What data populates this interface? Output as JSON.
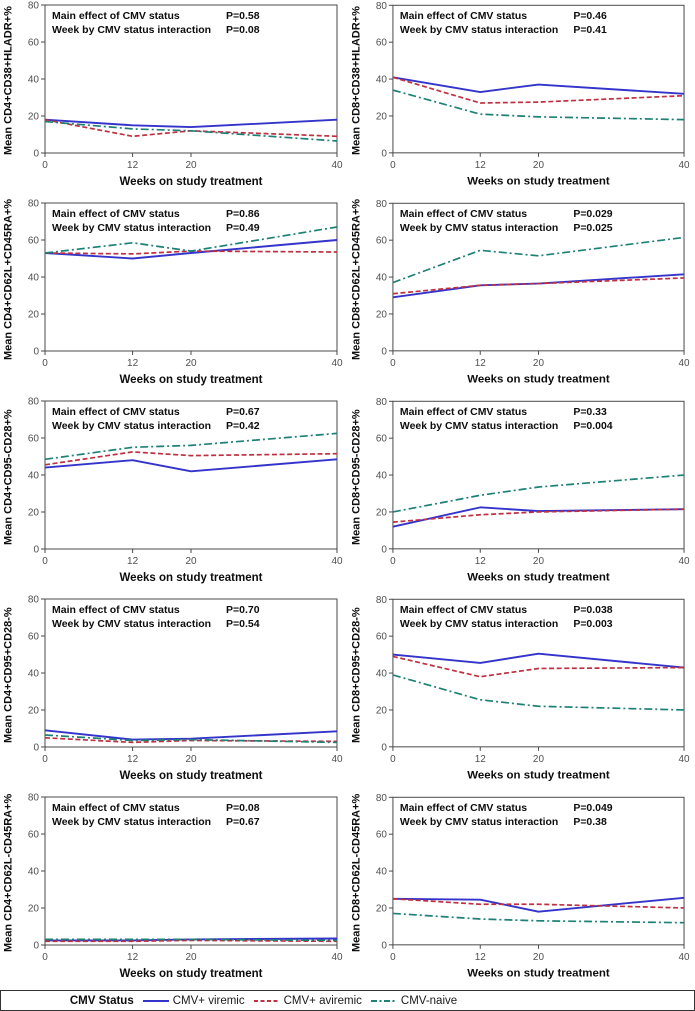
{
  "figure": {
    "xlabel": "Weeks on study treatment",
    "x_ticks": [
      0,
      12,
      20,
      40
    ],
    "y_ticks": [
      0,
      20,
      40,
      60,
      80
    ],
    "x_tick_labels": [
      "0",
      "12",
      "20",
      "40"
    ],
    "y_tick_labels": [
      "0",
      "20",
      "40",
      "60",
      "80"
    ],
    "xlim": [
      0,
      40
    ],
    "ylim": [
      0,
      80
    ],
    "grid": "off",
    "frame_color": "#4a4a4a"
  },
  "legend": {
    "title": "CMV Status",
    "position": "bottom",
    "items": [
      {
        "label": "CMV+ viremic",
        "color": "#3434cb",
        "dash": "solid"
      },
      {
        "label": "CMV+ aviremic",
        "color": "#bf3041",
        "dash": "dashed"
      },
      {
        "label": "CMV-naive",
        "color": "#1e8176",
        "dash": "dashdot"
      }
    ]
  },
  "chart_data": [
    {
      "type": "line",
      "ylabel": "Mean CD4+CD38+HLADR+%",
      "xlabel": "Weeks on study treatment",
      "x": [
        0,
        12,
        20,
        40
      ],
      "xlim": [
        0,
        40
      ],
      "ylim": [
        0,
        80
      ],
      "annotations": {
        "main_label": "Main effect of CMV status",
        "main_p": "P=0.58",
        "inter_label": "Week by CMV status interaction",
        "inter_p": "P=0.08"
      },
      "series": [
        {
          "name": "CMV+ viremic",
          "values": [
            18,
            15,
            14,
            18
          ]
        },
        {
          "name": "CMV+ aviremic",
          "values": [
            18,
            9,
            12,
            9
          ]
        },
        {
          "name": "CMV-naive",
          "values": [
            17,
            13,
            12,
            6.5
          ]
        }
      ]
    },
    {
      "type": "line",
      "ylabel": "Mean CD8+CD38+HLADR+%",
      "xlabel": "Weeks on study treatment",
      "x": [
        0,
        12,
        20,
        40
      ],
      "xlim": [
        0,
        40
      ],
      "ylim": [
        0,
        80
      ],
      "annotations": {
        "main_label": "Main effect of CMV status",
        "main_p": "P=0.46",
        "inter_label": "Week by CMV status interaction",
        "inter_p": "P=0.41"
      },
      "series": [
        {
          "name": "CMV+ viremic",
          "values": [
            41,
            33,
            37,
            32
          ]
        },
        {
          "name": "CMV+ aviremic",
          "values": [
            41,
            27,
            27.5,
            31
          ]
        },
        {
          "name": "CMV-naive",
          "values": [
            34,
            21,
            19.5,
            18
          ]
        }
      ]
    },
    {
      "type": "line",
      "ylabel": "Mean CD4+CD62L+CD45RA+%",
      "xlabel": "Weeks on study treatment",
      "x": [
        0,
        12,
        20,
        40
      ],
      "xlim": [
        0,
        40
      ],
      "ylim": [
        0,
        80
      ],
      "annotations": {
        "main_label": "Main effect of CMV status",
        "main_p": "P=0.86",
        "inter_label": "Week by CMV status interaction",
        "inter_p": "P=0.49"
      },
      "series": [
        {
          "name": "CMV+ viremic",
          "values": [
            53,
            50,
            53,
            60
          ]
        },
        {
          "name": "CMV+ aviremic",
          "values": [
            53,
            52.5,
            54,
            53.5
          ]
        },
        {
          "name": "CMV-naive",
          "values": [
            53,
            58.5,
            54,
            67
          ]
        }
      ]
    },
    {
      "type": "line",
      "ylabel": "Mean CD8+CD62L+CD45RA+%",
      "xlabel": "Weeks on study treatment",
      "x": [
        0,
        12,
        20,
        40
      ],
      "xlim": [
        0,
        40
      ],
      "ylim": [
        0,
        80
      ],
      "annotations": {
        "main_label": "Main effect of CMV status",
        "main_p": "P=0.029",
        "inter_label": "Week by CMV status interaction",
        "inter_p": "P=0.025"
      },
      "series": [
        {
          "name": "CMV+ viremic",
          "values": [
            29,
            35.5,
            36.5,
            41.5
          ]
        },
        {
          "name": "CMV+ aviremic",
          "values": [
            31,
            35.5,
            36.5,
            39.5
          ]
        },
        {
          "name": "CMV-naive",
          "values": [
            37,
            54.5,
            51.5,
            61.5
          ]
        }
      ]
    },
    {
      "type": "line",
      "ylabel": "Mean CD4+CD95-CD28+%",
      "xlabel": "Weeks on study treatment",
      "x": [
        0,
        12,
        20,
        40
      ],
      "xlim": [
        0,
        40
      ],
      "ylim": [
        0,
        80
      ],
      "annotations": {
        "main_label": "Main effect of CMV status",
        "main_p": "P=0.67",
        "inter_label": "Week by CMV status interaction",
        "inter_p": "P=0.42"
      },
      "series": [
        {
          "name": "CMV+ viremic",
          "values": [
            44,
            48,
            42,
            48.5
          ]
        },
        {
          "name": "CMV+ aviremic",
          "values": [
            45.5,
            52.5,
            50.5,
            51.5
          ]
        },
        {
          "name": "CMV-naive",
          "values": [
            48.5,
            55,
            56,
            62.5
          ]
        }
      ]
    },
    {
      "type": "line",
      "ylabel": "Mean CD8+CD95-CD28+%",
      "xlabel": "Weeks on study treatment",
      "x": [
        0,
        12,
        20,
        40
      ],
      "xlim": [
        0,
        40
      ],
      "ylim": [
        0,
        80
      ],
      "annotations": {
        "main_label": "Main effect of CMV status",
        "main_p": "P=0.33",
        "inter_label": "Week by CMV status interaction",
        "inter_p": "P=0.004"
      },
      "series": [
        {
          "name": "CMV+ viremic",
          "values": [
            12,
            22.5,
            20.5,
            21.5
          ]
        },
        {
          "name": "CMV+ aviremic",
          "values": [
            14.5,
            18.5,
            20,
            21.5
          ]
        },
        {
          "name": "CMV-naive",
          "values": [
            20,
            29,
            33.5,
            40
          ]
        }
      ]
    },
    {
      "type": "line",
      "ylabel": "Mean CD4+CD95+CD28-%",
      "xlabel": "Weeks on study treatment",
      "x": [
        0,
        12,
        20,
        40
      ],
      "xlim": [
        0,
        40
      ],
      "ylim": [
        0,
        80
      ],
      "annotations": {
        "main_label": "Main effect of CMV status",
        "main_p": "P=0.70",
        "inter_label": "Week by CMV status interaction",
        "inter_p": "P=0.54"
      },
      "series": [
        {
          "name": "CMV+ viremic",
          "values": [
            9,
            4,
            4.5,
            8.5
          ]
        },
        {
          "name": "CMV+ aviremic",
          "values": [
            5,
            2.5,
            3.5,
            3
          ]
        },
        {
          "name": "CMV-naive",
          "values": [
            6.5,
            3.5,
            4,
            2.5
          ]
        }
      ]
    },
    {
      "type": "line",
      "ylabel": "Mean CD8+CD95+CD28-%",
      "xlabel": "Weeks on study treatment",
      "x": [
        0,
        12,
        20,
        40
      ],
      "xlim": [
        0,
        40
      ],
      "ylim": [
        0,
        80
      ],
      "annotations": {
        "main_label": "Main effect of CMV status",
        "main_p": "P=0.038",
        "inter_label": "Week by CMV status interaction",
        "inter_p": "P=0.003"
      },
      "series": [
        {
          "name": "CMV+ viremic",
          "values": [
            50,
            45.5,
            50.5,
            43
          ]
        },
        {
          "name": "CMV+ aviremic",
          "values": [
            49,
            38,
            42.5,
            43
          ]
        },
        {
          "name": "CMV-naive",
          "values": [
            39,
            25.5,
            22,
            20
          ]
        }
      ]
    },
    {
      "type": "line",
      "ylabel": "Mean CD4+CD62L-CD45RA+%",
      "xlabel": "Weeks on study treatment",
      "x": [
        0,
        12,
        20,
        40
      ],
      "xlim": [
        0,
        40
      ],
      "ylim": [
        0,
        80
      ],
      "annotations": {
        "main_label": "Main effect of CMV status",
        "main_p": "P=0.08",
        "inter_label": "Week by CMV status interaction",
        "inter_p": "P=0.67"
      },
      "series": [
        {
          "name": "CMV+ viremic",
          "values": [
            2.5,
            2.5,
            3,
            3.5
          ]
        },
        {
          "name": "CMV+ aviremic",
          "values": [
            2,
            2,
            2.5,
            2
          ]
        },
        {
          "name": "CMV-naive",
          "values": [
            3,
            3,
            3,
            2.5
          ]
        }
      ]
    },
    {
      "type": "line",
      "ylabel": "Mean CD8+CD62L-CD45RA+%",
      "xlabel": "Weeks on study treatment",
      "x": [
        0,
        12,
        20,
        40
      ],
      "xlim": [
        0,
        40
      ],
      "ylim": [
        0,
        80
      ],
      "annotations": {
        "main_label": "Main effect of CMV status",
        "main_p": "P=0.049",
        "inter_label": "Week by CMV status interaction",
        "inter_p": "P=0.38"
      },
      "series": [
        {
          "name": "CMV+ viremic",
          "values": [
            25,
            24.5,
            18,
            25.5
          ]
        },
        {
          "name": "CMV+ aviremic",
          "values": [
            25,
            22,
            22,
            20
          ]
        },
        {
          "name": "CMV-naive",
          "values": [
            17,
            14,
            13,
            12
          ]
        }
      ]
    }
  ]
}
